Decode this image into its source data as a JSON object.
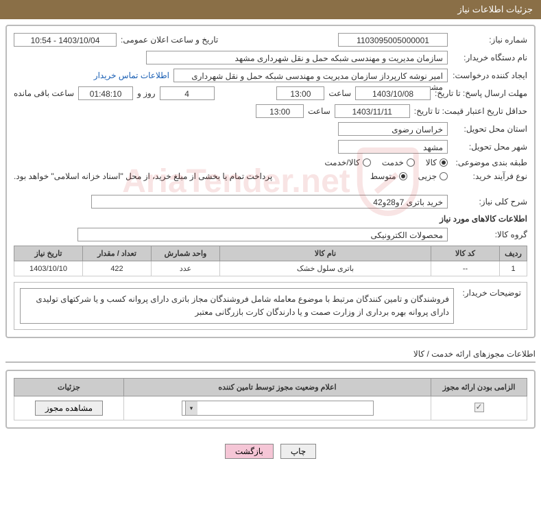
{
  "header_title": "جزئیات اطلاعات نیاز",
  "fields": {
    "need_number_label": "شماره نیاز:",
    "need_number": "1103095005000001",
    "announce_label": "تاریخ و ساعت اعلان عمومی:",
    "announce_value": "1403/10/04 - 10:54",
    "buyer_label": "نام دستگاه خریدار:",
    "buyer_value": "سازمان مدیریت و مهندسی شبکه حمل و نقل شهرداری مشهد",
    "requester_label": "ایجاد کننده درخواست:",
    "requester_value": "امیر نوشه کارپرداز سازمان مدیریت و مهندسی شبکه حمل و نقل شهرداری مشه",
    "contact_link": "اطلاعات تماس خریدار",
    "deadline_label": "مهلت ارسال پاسخ: تا تاریخ:",
    "deadline_date": "1403/10/08",
    "time_label": "ساعت",
    "deadline_time": "13:00",
    "days_label": "روز و",
    "days_remaining": "4",
    "countdown": "01:48:10",
    "remaining_label": "ساعت باقی مانده",
    "validity_label": "حداقل تاریخ اعتبار قیمت: تا تاریخ:",
    "validity_date": "1403/11/11",
    "validity_time": "13:00",
    "province_label": "استان محل تحویل:",
    "province": "خراسان رضوی",
    "city_label": "شهر محل تحویل:",
    "city": "مشهد",
    "category_label": "طبقه بندی موضوعی:",
    "purchase_type_label": "نوع فرآیند خرید:",
    "purchase_note": "پرداخت تمام یا بخشی از مبلغ خرید، از محل \"اسناد خزانه اسلامی\" خواهد بود.",
    "desc_label": "شرح کلی نیاز:",
    "desc_value": "خرید باتری 7و28و42",
    "goods_section": "اطلاعات کالاهای مورد نیاز",
    "group_label": "گروه کالا:",
    "group_value": "محصولات الکترونیکی",
    "buyer_note_label": "توضیحات خریدار:",
    "buyer_note": "فروشندگان و تامین کنندگان مرتبط با موضوع معامله شامل فروشندگان مجاز باتری دارای پروانه کسب و یا شرکتهای تولیدی دارای پروانه بهره برداری از وزارت صمت و یا دارندگان کارت بازرگانی معتبر",
    "permit_section": "اطلاعات مجوزهای ارائه خدمت / کالا"
  },
  "radios": {
    "cat_goods": "کالا",
    "cat_service": "خدمت",
    "cat_both": "کالا/خدمت",
    "type_partial": "جزیی",
    "type_medium": "متوسط"
  },
  "table": {
    "headers": {
      "row": "ردیف",
      "code": "کد کالا",
      "name": "نام کالا",
      "unit": "واحد شمارش",
      "qty": "تعداد / مقدار",
      "date": "تاریخ نیاز"
    },
    "rows": [
      {
        "row": "1",
        "code": "--",
        "name": "باتری سلول خشک",
        "unit": "عدد",
        "qty": "422",
        "date": "1403/10/10"
      }
    ]
  },
  "permit_table": {
    "headers": {
      "mandatory": "الزامی بودن ارائه مجوز",
      "status": "اعلام وضعیت مجوز توسط تامین کننده",
      "details": "جزئیات"
    },
    "view_btn": "مشاهده مجوز"
  },
  "footer": {
    "print": "چاپ",
    "back": "بازگشت"
  },
  "colors": {
    "header_bg": "#8a6f47",
    "th_bg": "#cccccc",
    "border": "#bbbbbb",
    "link": "#1a5fb4",
    "btn_pink": "#f5c6d6"
  },
  "watermark_text": "AriaTender.net"
}
